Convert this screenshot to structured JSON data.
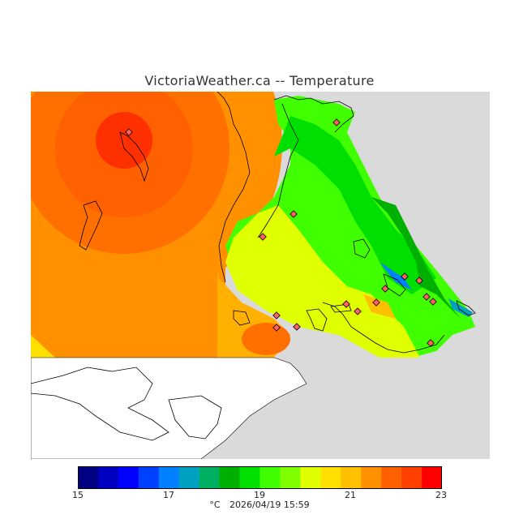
{
  "title": "VictoriaWeather.ca -- Temperature",
  "colorbar": {
    "min": 15,
    "max": 23,
    "tick_labels": [
      "15",
      "17",
      "19",
      "21",
      "23"
    ],
    "tick_values": [
      15,
      17,
      19,
      21,
      23
    ],
    "colors": [
      "#000080",
      "#0000c0",
      "#0000ff",
      "#0040ff",
      "#0080ff",
      "#00a0c0",
      "#00b060",
      "#00b000",
      "#00e000",
      "#40ff00",
      "#80ff00",
      "#e0ff00",
      "#ffe000",
      "#ffc000",
      "#ff9000",
      "#ff6000",
      "#ff4000",
      "#ff0000"
    ]
  },
  "footer": {
    "unit": "°C",
    "timestamp": "2026/04/19 15:59"
  },
  "colors": {
    "land_gray": "#dadada",
    "water_white": "#ffffff",
    "coast": "#000000"
  }
}
